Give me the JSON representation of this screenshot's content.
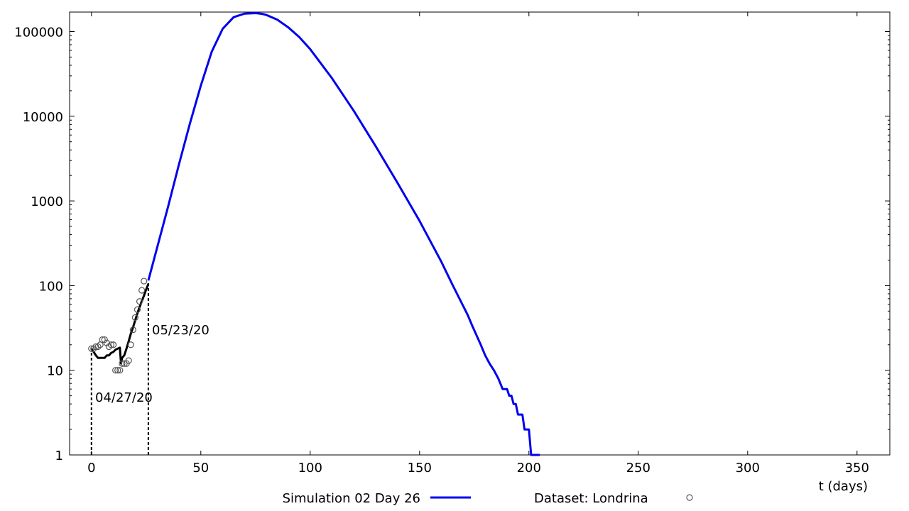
{
  "chart_data": {
    "type": "line",
    "title": "",
    "xlabel": "t (days)",
    "ylabel": "",
    "xlim": [
      -10,
      365
    ],
    "ylim": [
      1,
      170000
    ],
    "yscale": "log",
    "grid": false,
    "legend": "bottom, horizontal",
    "xticks": [
      0,
      50,
      100,
      150,
      200,
      250,
      300,
      350
    ],
    "yticks": [
      1,
      10,
      100,
      1000,
      10000,
      100000
    ],
    "xtick_labels": [
      "0",
      "50",
      "100",
      "150",
      "200",
      "250",
      "300",
      "350"
    ],
    "ytick_labels": [
      "1",
      "10",
      "100",
      "1000",
      "10000",
      "100000"
    ],
    "series": [
      {
        "name": "Simulation 02 Day 26",
        "color": "#0000ee",
        "style": "line",
        "x": [
          26,
          30,
          35,
          40,
          45,
          50,
          55,
          60,
          65,
          70,
          75,
          78,
          80,
          85,
          90,
          95,
          100,
          110,
          120,
          130,
          140,
          150,
          160,
          165,
          170,
          172,
          174,
          176,
          178,
          180,
          182,
          184,
          186,
          188,
          190,
          191,
          192,
          193,
          194,
          195,
          197,
          198,
          200,
          201,
          202,
          205
        ],
        "y": [
          115,
          280,
          850,
          2700,
          8200,
          23000,
          58000,
          108000,
          148000,
          163000,
          165000,
          162000,
          157000,
          138000,
          112000,
          86000,
          62000,
          28000,
          11500,
          4400,
          1620,
          580,
          190,
          103,
          57,
          45,
          34,
          26,
          20,
          15,
          12,
          10,
          8,
          6,
          6,
          5,
          5,
          4,
          4,
          3,
          3,
          2,
          2,
          1,
          1,
          1
        ]
      },
      {
        "name": "",
        "color": "#000000",
        "style": "line",
        "x": [
          0,
          1,
          2,
          3,
          4,
          5,
          6,
          7,
          8,
          9,
          10,
          11,
          12,
          13,
          13.5,
          14,
          15,
          16,
          17,
          18,
          19,
          20,
          21,
          22,
          23,
          24,
          25,
          26
        ],
        "y": [
          18,
          16.5,
          15,
          14,
          14,
          14,
          14,
          15,
          15,
          16,
          16.5,
          17.5,
          18,
          18.5,
          12,
          14,
          15,
          18,
          22,
          27,
          32,
          39,
          47,
          56,
          65,
          76,
          90,
          105
        ]
      },
      {
        "name": "Dataset: Londrina",
        "color": "#555555",
        "style": "markers",
        "x": [
          0,
          1,
          2,
          3,
          4,
          5,
          6,
          7,
          8,
          9,
          10,
          11,
          12,
          13,
          14,
          15,
          16,
          17,
          18,
          19,
          20,
          21,
          22,
          23,
          24,
          25,
          26
        ],
        "y": [
          18,
          18,
          19,
          19,
          20,
          23,
          23,
          21,
          19,
          20,
          20,
          10,
          10,
          10,
          12,
          12,
          12,
          13,
          20,
          30,
          42,
          52,
          65,
          88,
          113,
          0,
          0
        ]
      }
    ],
    "annotations": [
      {
        "text": "04/27/20",
        "x": 0
      },
      {
        "text": "05/23/20",
        "x": 26
      }
    ]
  }
}
